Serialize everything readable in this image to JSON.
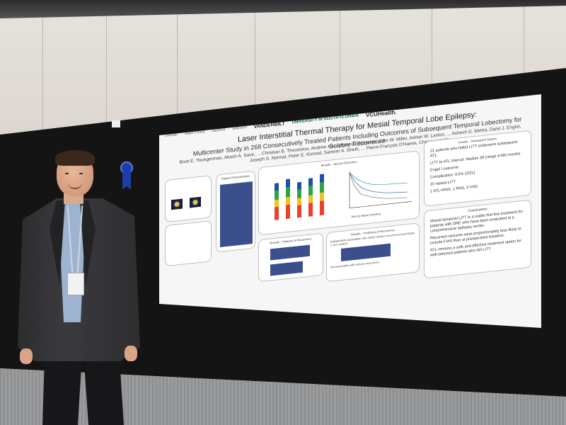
{
  "poster": {
    "logos": [
      "UHealth",
      "Wake Forest",
      "Stanford",
      "Jefferson",
      "VANDERBILT",
      "UNIVERSITY of SOUTH FLORIDA",
      "VCUHealth."
    ],
    "title": "Laser Interstitial Thermal Therapy for Mesial Temporal Lobe Epilepsy:",
    "subtitle": "Multicenter Study in 268 Consecutively Treated Patients Including Outcomes of Subsequent Temporal Lobectomy for Seizure Recurrence",
    "authors": "Brett E. Youngerman, Akash A. Save, ... Christian B. Theodotou, Andrew Ko, Jeffrey G. Ojemann, John W. Miller, Adrian W. Laxton, ... Ashesh D. Mehta, Dario J. Englot, Joseph S. Neimat, Peter E. Konrad, Sameer A. Sheth, ... Pierre-François D'Haese, Chengyuan Wu",
    "sections": {
      "results_seizure_outcomes": "Results – Seizure Outcomes",
      "patient_characteristics": "Patient Characteristics",
      "results_subsequent_surgery": "Results – Subsequent Surgery",
      "results_patterns": "Results – Patterns of Recurrence",
      "results_predictors": "Results – Predictors of Recurrence",
      "conclusions": "Conclusions"
    },
    "subsequent_surgery_text": [
      "21 patients who failed LITT underwent subsequent ATL",
      "LITT to ATL interval: Median 28 (range 4-58) months",
      "Engel I outcome:",
      "65% (13/20) at 1 year",
      "67% (10/15) at 2 years",
      "65% (13/20) at last follow-up",
      "Follow-up: median 29, range 12-65 months",
      "Complication: 9.5% (2/21)",
      "10 repeat LITT",
      "Interval: Median 15 (range 7-50) months",
      "50% Engel I at 1 year",
      "1 ATL+RNS, 1 RNS, 3 VNS"
    ],
    "conclusions_text": [
      "Mesial temporal LITT is a viable first-line treatment for patients with DRE who have been evaluated at a comprehensive epilepsy center.",
      "Recurrent seizures were proportionately less likely to include FIAS than at preoperative baseline.",
      "Presence of FBTC seizures and contralateral PET hypometabolism were associated with treatment failure.",
      "ATL remains a safe and effective treatment option for well-selected patients who fail LITT.",
      "Results reflect the early experience of each center and a heterogeneous population of mTLE patients.",
      "Including normal (non-MTS) MRI, dual pathology, and discordant localization.",
      "Outcomes may improve with modifications in technique and patient selection."
    ],
    "predictors_text": [
      "Independent association with earlier seizure recurrence (non-Engel I, Cox model)",
      "No association with seizure recurrence:",
      "MTS on MRI",
      "Dual pathology on MRI",
      "EEG localization",
      "Invasive monitoring",
      "Contralateral MTP (to SLATE eligible)"
    ],
    "km_ylabel": "Cumulative survival",
    "km_xlabel": "Time to failure (months)"
  }
}
